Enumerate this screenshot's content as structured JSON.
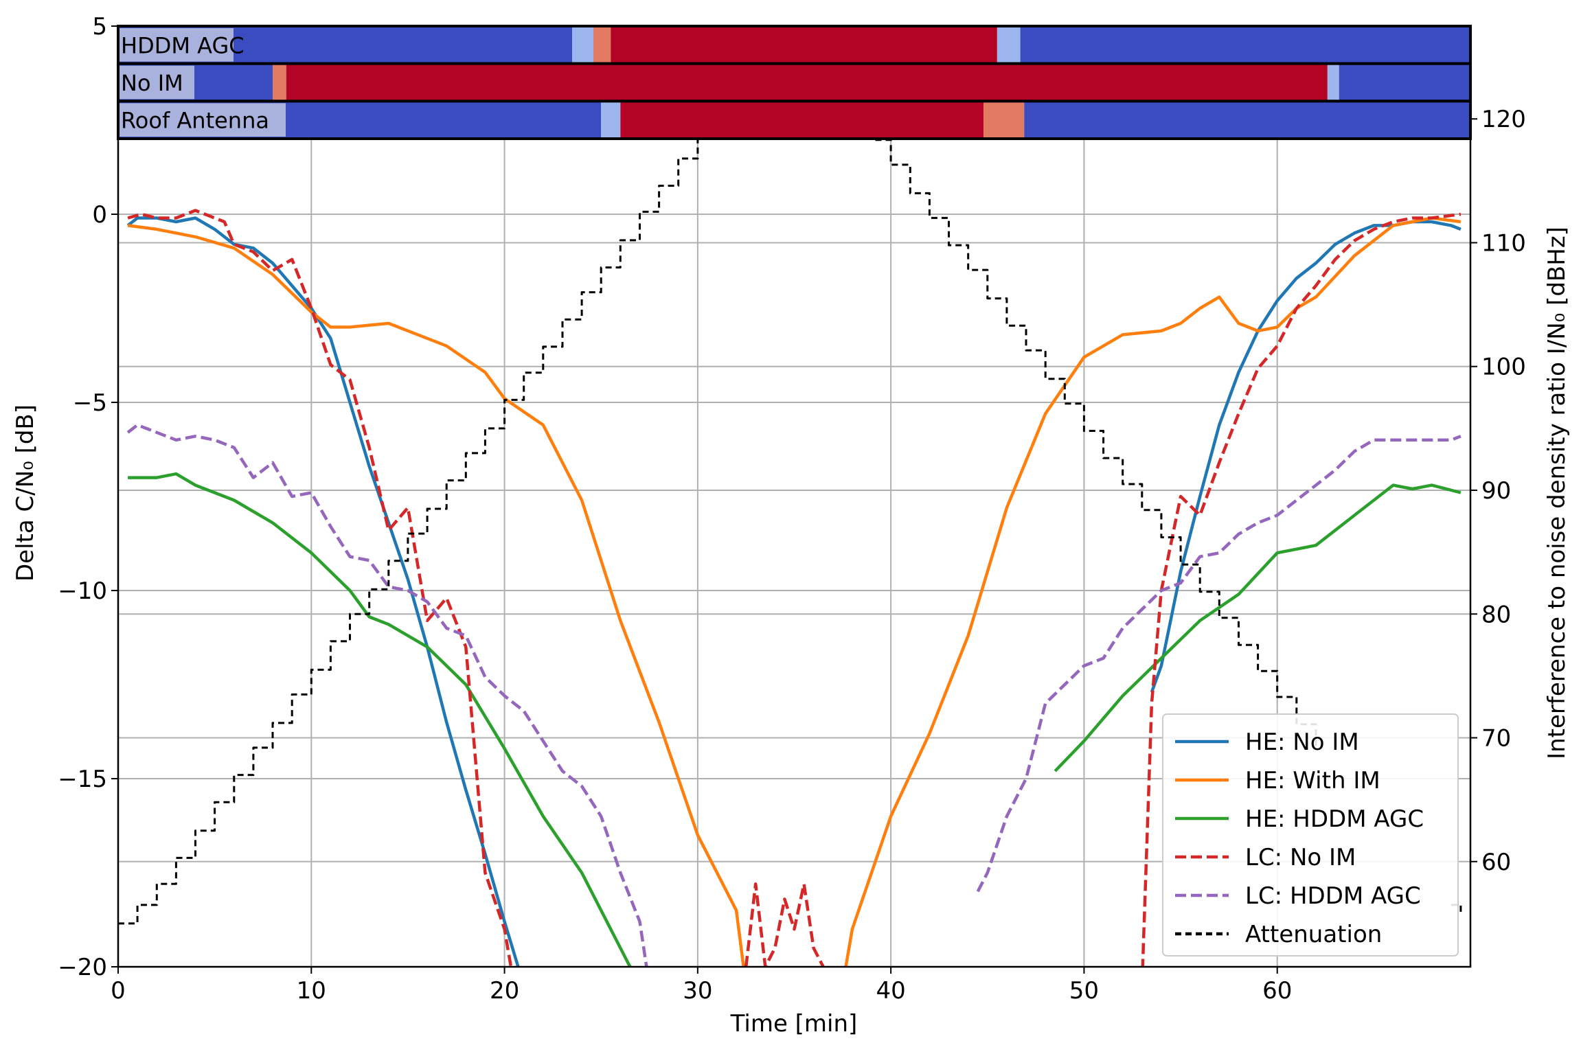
{
  "chart_data": {
    "type": "line",
    "xlabel": "Time [min]",
    "ylabel_left": "Delta C/N₀ [dB]",
    "ylabel_right": "Interference to noise density ratio I/N₀ [dBHz]",
    "xlim": [
      0,
      70
    ],
    "ylim_left": [
      -20,
      5
    ],
    "ylim_right": [
      51.5,
      127.5
    ],
    "xticks": [
      0,
      10,
      20,
      30,
      40,
      50,
      60
    ],
    "yticks_left": [
      0,
      -5,
      -10,
      -15,
      -20,
      5
    ],
    "yticks_right": [
      60,
      70,
      80,
      90,
      100,
      110,
      120
    ],
    "grid": true,
    "legend_position": "lower-right",
    "strip_labels": [
      "HDDM AGC",
      "No IM",
      "Roof Antenna"
    ],
    "strip_colors": {
      "low": "#3b4cc0",
      "high": "#b40426"
    },
    "strips": [
      {
        "label": "HDDM AGC",
        "segments": [
          [
            0,
            23.5,
            "low"
          ],
          [
            23.5,
            24.6,
            "mid"
          ],
          [
            24.6,
            25.5,
            "mid2"
          ],
          [
            25.5,
            45.5,
            "high"
          ],
          [
            45.5,
            46.7,
            "mid"
          ],
          [
            46.7,
            70,
            "low"
          ]
        ]
      },
      {
        "label": "No IM",
        "segments": [
          [
            0,
            8.0,
            "low"
          ],
          [
            8.0,
            8.7,
            "mid2"
          ],
          [
            8.7,
            62.6,
            "high"
          ],
          [
            62.6,
            63.2,
            "mid"
          ],
          [
            63.2,
            70,
            "low"
          ]
        ]
      },
      {
        "label": "Roof Antenna",
        "segments": [
          [
            0,
            25.0,
            "low"
          ],
          [
            25.0,
            26.0,
            "mid"
          ],
          [
            26.0,
            44.8,
            "high"
          ],
          [
            44.8,
            46.9,
            "mid2"
          ],
          [
            46.9,
            70,
            "low"
          ]
        ]
      }
    ],
    "series": [
      {
        "name": "HE: No IM",
        "color": "#1f77b4",
        "dashed": false,
        "axis": "left",
        "segments": [
          {
            "x": [
              0.5,
              1,
              2,
              3,
              4,
              5,
              6,
              7,
              8,
              9,
              10,
              11,
              12,
              13,
              14,
              15,
              16,
              17,
              18,
              19,
              20,
              21
            ],
            "y": [
              -0.3,
              -0.1,
              -0.1,
              -0.2,
              -0.1,
              -0.4,
              -0.8,
              -0.9,
              -1.3,
              -1.9,
              -2.5,
              -3.3,
              -5.0,
              -6.7,
              -8.2,
              -9.7,
              -11.5,
              -13.5,
              -15.3,
              -17.0,
              -18.8,
              -20.5
            ]
          },
          {
            "x": [
              53.5,
              54,
              55,
              56,
              57,
              58,
              59,
              60,
              61,
              62,
              63,
              64,
              65,
              66,
              67,
              68,
              69,
              69.5
            ],
            "y": [
              -12.7,
              -12.0,
              -9.5,
              -7.5,
              -5.6,
              -4.2,
              -3.1,
              -2.3,
              -1.7,
              -1.3,
              -0.8,
              -0.5,
              -0.3,
              -0.3,
              -0.2,
              -0.2,
              -0.3,
              -0.4
            ]
          }
        ]
      },
      {
        "name": "HE: With IM",
        "color": "#ff7f0e",
        "dashed": false,
        "axis": "left",
        "segments": [
          {
            "x": [
              0.5,
              2,
              4,
              6,
              8,
              9,
              10,
              11,
              12,
              14,
              16,
              17,
              19,
              20,
              22,
              24,
              26,
              28,
              30,
              31,
              32,
              32.5
            ],
            "y": [
              -0.3,
              -0.4,
              -0.6,
              -0.9,
              -1.6,
              -2.1,
              -2.6,
              -3.0,
              -3.0,
              -2.9,
              -3.3,
              -3.5,
              -4.2,
              -4.9,
              -5.6,
              -7.6,
              -10.8,
              -13.5,
              -16.5,
              -17.5,
              -18.5,
              -20.5
            ]
          },
          {
            "x": [
              37.5,
              38,
              40,
              42,
              44,
              46,
              48,
              50,
              52,
              54,
              55,
              56,
              57,
              58,
              59,
              60,
              61,
              62,
              64,
              66,
              68,
              69.5
            ],
            "y": [
              -20.5,
              -19.0,
              -16.0,
              -13.8,
              -11.2,
              -7.8,
              -5.3,
              -3.8,
              -3.2,
              -3.1,
              -2.9,
              -2.5,
              -2.2,
              -2.9,
              -3.1,
              -3.0,
              -2.5,
              -2.2,
              -1.1,
              -0.3,
              -0.1,
              -0.2
            ]
          }
        ]
      },
      {
        "name": "HE: HDDM AGC",
        "color": "#2ca02c",
        "dashed": false,
        "axis": "left",
        "segments": [
          {
            "x": [
              0.5,
              2,
              3,
              4,
              6,
              8,
              10,
              12,
              13,
              14,
              16,
              18,
              20,
              22,
              24,
              25,
              26,
              27
            ],
            "y": [
              -7.0,
              -7.0,
              -6.9,
              -7.2,
              -7.6,
              -8.2,
              -9.0,
              -10.0,
              -10.7,
              -10.9,
              -11.5,
              -12.5,
              -14.2,
              -16.0,
              -17.5,
              -18.5,
              -19.5,
              -20.5
            ]
          },
          {
            "x": [
              48.5,
              50,
              52,
              54,
              56,
              58,
              60,
              62,
              64,
              66,
              67,
              68,
              69.5
            ],
            "y": [
              -14.8,
              -14.0,
              -12.8,
              -11.8,
              -10.8,
              -10.1,
              -9.0,
              -8.8,
              -8.0,
              -7.2,
              -7.3,
              -7.2,
              -7.4
            ]
          }
        ]
      },
      {
        "name": "LC: No IM",
        "color": "#d62728",
        "dashed": true,
        "axis": "left",
        "segments": [
          {
            "x": [
              0.5,
              1.2,
              2,
              3,
              4,
              5,
              5.5,
              6,
              7,
              8,
              9,
              10,
              11,
              12,
              13,
              14,
              15,
              16,
              17,
              18,
              19,
              20,
              20.5
            ],
            "y": [
              -0.1,
              0.0,
              -0.1,
              -0.1,
              0.1,
              -0.1,
              -0.2,
              -0.8,
              -1.0,
              -1.5,
              -1.2,
              -2.5,
              -4.0,
              -4.4,
              -6.2,
              -8.4,
              -7.8,
              -10.8,
              -10.2,
              -11.5,
              -17.5,
              -19.0,
              -20.5
            ]
          },
          {
            "x": [
              32.5,
              33,
              33.5,
              34,
              34.5,
              35,
              35.5,
              36,
              36.5
            ],
            "y": [
              -20.0,
              -17.8,
              -20.0,
              -19.5,
              -18.2,
              -19.0,
              -17.8,
              -19.5,
              -20.0
            ]
          },
          {
            "x": [
              53.0,
              53.5,
              54,
              55,
              56,
              57,
              58,
              59,
              60,
              61,
              62,
              63,
              64,
              65,
              66,
              67,
              68,
              69.5
            ],
            "y": [
              -20.5,
              -13.0,
              -10.0,
              -7.5,
              -8.0,
              -6.6,
              -5.3,
              -4.1,
              -3.5,
              -2.5,
              -1.9,
              -1.2,
              -0.7,
              -0.4,
              -0.2,
              -0.1,
              -0.1,
              0.0
            ]
          }
        ]
      },
      {
        "name": "LC: HDDM AGC",
        "color": "#9467bd",
        "dashed": true,
        "axis": "left",
        "segments": [
          {
            "x": [
              0.5,
              1,
              2,
              3,
              4,
              5,
              6,
              7,
              8,
              9,
              10,
              11,
              12,
              13,
              14,
              15,
              16,
              17,
              18,
              19,
              20,
              21,
              22,
              23,
              24,
              25,
              26,
              27,
              27.5
            ],
            "y": [
              -5.8,
              -5.6,
              -5.8,
              -6.0,
              -5.9,
              -6.0,
              -6.2,
              -7.0,
              -6.6,
              -7.5,
              -7.4,
              -8.3,
              -9.1,
              -9.2,
              -9.9,
              -10.0,
              -10.3,
              -11.0,
              -11.2,
              -12.3,
              -12.8,
              -13.2,
              -14.0,
              -14.8,
              -15.2,
              -16.0,
              -17.5,
              -18.8,
              -20.5
            ]
          },
          {
            "x": [
              44.5,
              45,
              46,
              47,
              48,
              49,
              50,
              51,
              52,
              53,
              54,
              55,
              56,
              57,
              58,
              59,
              60,
              61,
              62,
              63,
              64,
              65,
              66,
              67,
              68,
              69,
              69.5
            ],
            "y": [
              -18.0,
              -17.5,
              -16.0,
              -15.0,
              -13.0,
              -12.5,
              -12.0,
              -11.8,
              -11.0,
              -10.5,
              -10.0,
              -9.8,
              -9.1,
              -9.0,
              -8.5,
              -8.2,
              -8.0,
              -7.6,
              -7.2,
              -6.8,
              -6.3,
              -6.0,
              -6.0,
              -6.0,
              -6.0,
              -6.0,
              -5.9
            ]
          }
        ]
      },
      {
        "name": "Attenuation",
        "color": "#000000",
        "dashed": true,
        "axis": "right",
        "step": true,
        "segments": [
          {
            "x": [
              0.0,
              1,
              2,
              3,
              4,
              5,
              6,
              7,
              8,
              9,
              10,
              11,
              12,
              13,
              14,
              15,
              16,
              17,
              18,
              19,
              20,
              21,
              22,
              23,
              24,
              25,
              26,
              27,
              28,
              29,
              30,
              31,
              32,
              33,
              34,
              35,
              35.5,
              36,
              37,
              38,
              39,
              40,
              41,
              42,
              43,
              44,
              45,
              46,
              47,
              48,
              49,
              50,
              51,
              52,
              53,
              54,
              55,
              56,
              57,
              58,
              59,
              60,
              61,
              62
            ],
            "y": [
              55.0,
              56.5,
              58.2,
              60.3,
              62.5,
              64.8,
              67.0,
              69.2,
              71.2,
              73.5,
              75.5,
              77.8,
              80.0,
              82.0,
              84.3,
              86.5,
              88.5,
              90.8,
              93.0,
              95.0,
              97.3,
              99.5,
              101.6,
              103.8,
              106.0,
              108.0,
              110.2,
              112.5,
              114.6,
              116.8,
              118.9,
              120.8,
              122.8,
              124.8,
              126.3,
              126.8,
              126.0,
              124.5,
              122.5,
              120.5,
              118.3,
              116.3,
              114.0,
              112.0,
              109.8,
              107.8,
              105.5,
              103.3,
              101.3,
              99.0,
              97.0,
              94.8,
              92.6,
              90.5,
              88.4,
              86.2,
              84.0,
              81.8,
              79.7,
              77.5,
              75.4,
              73.3,
              71.1,
              69.0
            ]
          },
          {
            "x": [
              69.0,
              69.5
            ],
            "y": [
              56.5,
              55.8
            ]
          }
        ]
      }
    ]
  }
}
